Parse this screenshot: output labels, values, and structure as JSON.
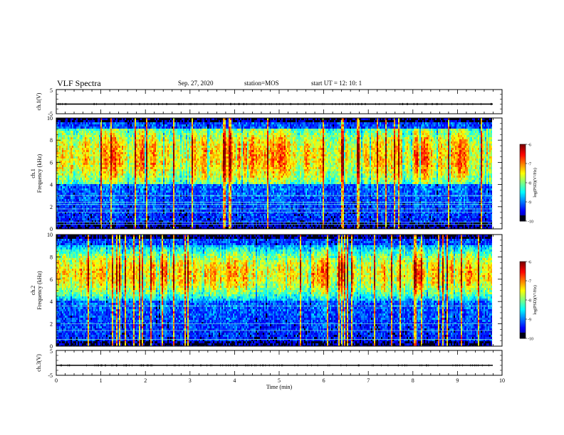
{
  "header": {
    "title": "VLF Spectra",
    "date": "Sep. 27, 2020",
    "station": "station=MOS",
    "start_ut": "start  UT =   12: 10: 1"
  },
  "chart_data": {
    "type": "heatmap",
    "xlabel": "Time (min)",
    "xlim": [
      0,
      10
    ],
    "x_ticks": [
      "0",
      "1",
      "2",
      "3",
      "4",
      "5",
      "6",
      "7",
      "8",
      "9",
      "10"
    ],
    "panels": [
      {
        "id": "ch1-voltage",
        "ylabel": "ch.1(V)",
        "ylim": [
          -5,
          5
        ],
        "y_ticks": [
          "5",
          "-5"
        ],
        "trace_level": -1
      },
      {
        "id": "ch1-spectrogram",
        "ylabel_channel": "ch.1",
        "ylabel": "Frequency (kHz)",
        "ylim": [
          0,
          10
        ],
        "y_ticks": [
          "0",
          "2",
          "4",
          "6",
          "8",
          "10"
        ],
        "intense_band_khz": [
          4,
          9
        ],
        "colorbar": {
          "label": "log(PSD)(V²/Hz)",
          "range": [
            -10,
            -6
          ],
          "ticks": [
            "-6",
            "-7",
            "-8",
            "-9",
            "-10"
          ]
        }
      },
      {
        "id": "ch2-spectrogram",
        "ylabel_channel": "ch.2",
        "ylabel": "Frequency (kHz)",
        "ylim": [
          0,
          10
        ],
        "y_ticks": [
          "0",
          "2",
          "4",
          "6",
          "8",
          "10"
        ],
        "intense_band_khz": [
          5,
          8
        ],
        "colorbar": {
          "label": "log(PSD)(V²/Hz)",
          "range": [
            -10,
            -6
          ],
          "ticks": [
            "-6",
            "-7",
            "-8",
            "-9",
            "-10"
          ]
        }
      },
      {
        "id": "ch3-voltage",
        "ylabel": "ch.3(V)",
        "ylim": [
          -5,
          5
        ],
        "y_ticks": [
          "5",
          "-5"
        ],
        "trace_level": -1
      }
    ]
  }
}
